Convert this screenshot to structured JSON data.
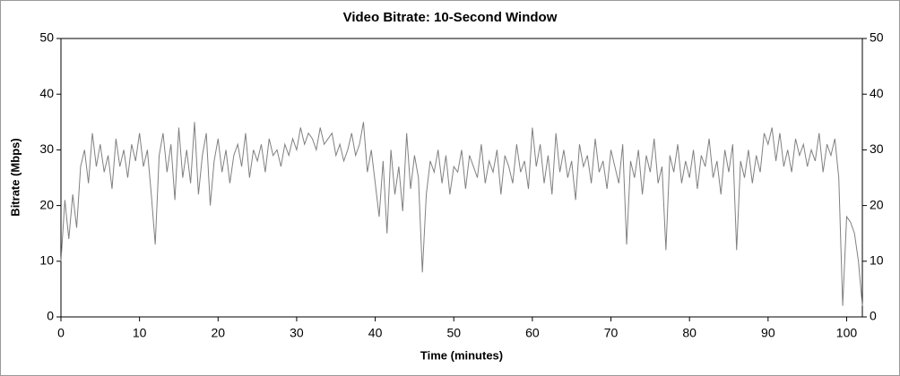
{
  "chart_data": {
    "type": "line",
    "title": "Video Bitrate: 10-Second Window",
    "x_label": "Time (minutes)",
    "y_label": "Bitrate (Mbps)",
    "xlim": [
      0,
      102
    ],
    "ylim": [
      0,
      50
    ],
    "xticks": [
      0,
      10,
      20,
      30,
      40,
      50,
      60,
      70,
      80,
      90,
      100
    ],
    "yticks": [
      0,
      10,
      20,
      30,
      40,
      50
    ],
    "x": [
      0,
      0.5,
      1,
      1.5,
      2,
      2.5,
      3,
      3.5,
      4,
      4.5,
      5,
      5.5,
      6,
      6.5,
      7,
      7.5,
      8,
      8.5,
      9,
      9.5,
      10,
      10.5,
      11,
      11.5,
      12,
      12.5,
      13,
      13.5,
      14,
      14.5,
      15,
      15.5,
      16,
      16.5,
      17,
      17.5,
      18,
      18.5,
      19,
      19.5,
      20,
      20.5,
      21,
      21.5,
      22,
      22.5,
      23,
      23.5,
      24,
      24.5,
      25,
      25.5,
      26,
      26.5,
      27,
      27.5,
      28,
      28.5,
      29,
      29.5,
      30,
      30.5,
      31,
      31.5,
      32,
      32.5,
      33,
      33.5,
      34,
      34.5,
      35,
      35.5,
      36,
      36.5,
      37,
      37.5,
      38,
      38.5,
      39,
      39.5,
      40,
      40.5,
      41,
      41.5,
      42,
      42.5,
      43,
      43.5,
      44,
      44.5,
      45,
      45.5,
      46,
      46.5,
      47,
      47.5,
      48,
      48.5,
      49,
      49.5,
      50,
      50.5,
      51,
      51.5,
      52,
      52.5,
      53,
      53.5,
      54,
      54.5,
      55,
      55.5,
      56,
      56.5,
      57,
      57.5,
      58,
      58.5,
      59,
      59.5,
      60,
      60.5,
      61,
      61.5,
      62,
      62.5,
      63,
      63.5,
      64,
      64.5,
      65,
      65.5,
      66,
      66.5,
      67,
      67.5,
      68,
      68.5,
      69,
      69.5,
      70,
      70.5,
      71,
      71.5,
      72,
      72.5,
      73,
      73.5,
      74,
      74.5,
      75,
      75.5,
      76,
      76.5,
      77,
      77.5,
      78,
      78.5,
      79,
      79.5,
      80,
      80.5,
      81,
      81.5,
      82,
      82.5,
      83,
      83.5,
      84,
      84.5,
      85,
      85.5,
      86,
      86.5,
      87,
      87.5,
      88,
      88.5,
      89,
      89.5,
      90,
      90.5,
      91,
      91.5,
      92,
      92.5,
      93,
      93.5,
      94,
      94.5,
      95,
      95.5,
      96,
      96.5,
      97,
      97.5,
      98,
      98.5,
      99,
      99.5,
      100,
      100.5,
      101,
      101.5,
      102
    ],
    "series": [
      {
        "color": "#808080",
        "values": [
          10,
          21,
          14,
          22,
          16,
          27,
          30,
          24,
          33,
          27,
          31,
          26,
          29,
          23,
          32,
          27,
          30,
          25,
          31,
          28,
          33,
          27,
          30,
          22,
          13,
          29,
          33,
          26,
          31,
          21,
          34,
          25,
          30,
          24,
          35,
          22,
          29,
          33,
          20,
          28,
          32,
          26,
          30,
          24,
          29,
          31,
          27,
          33,
          25,
          30,
          28,
          31,
          26,
          32,
          29,
          30,
          27,
          31,
          29,
          32,
          30,
          34,
          31,
          33,
          32,
          30,
          34,
          31,
          32,
          33,
          29,
          31,
          28,
          30,
          33,
          29,
          31,
          35,
          26,
          30,
          24,
          18,
          28,
          15,
          30,
          22,
          27,
          19,
          33,
          23,
          29,
          25,
          8,
          22,
          28,
          26,
          30,
          24,
          29,
          22,
          27,
          26,
          30,
          23,
          29,
          27,
          25,
          31,
          24,
          28,
          26,
          30,
          22,
          29,
          27,
          24,
          31,
          26,
          28,
          23,
          34,
          27,
          31,
          24,
          29,
          22,
          33,
          26,
          30,
          25,
          28,
          21,
          31,
          27,
          29,
          24,
          32,
          26,
          28,
          23,
          30,
          27,
          24,
          31,
          13,
          28,
          25,
          30,
          22,
          29,
          26,
          32,
          24,
          27,
          12,
          29,
          26,
          31,
          24,
          28,
          25,
          30,
          23,
          29,
          27,
          32,
          25,
          28,
          22,
          30,
          26,
          31,
          12,
          28,
          25,
          30,
          24,
          29,
          26,
          33,
          31,
          34,
          28,
          33,
          27,
          30,
          26,
          32,
          29,
          31,
          27,
          30,
          28,
          33,
          26,
          31,
          29,
          32,
          25,
          2,
          18,
          17,
          15,
          10,
          2
        ]
      }
    ]
  }
}
